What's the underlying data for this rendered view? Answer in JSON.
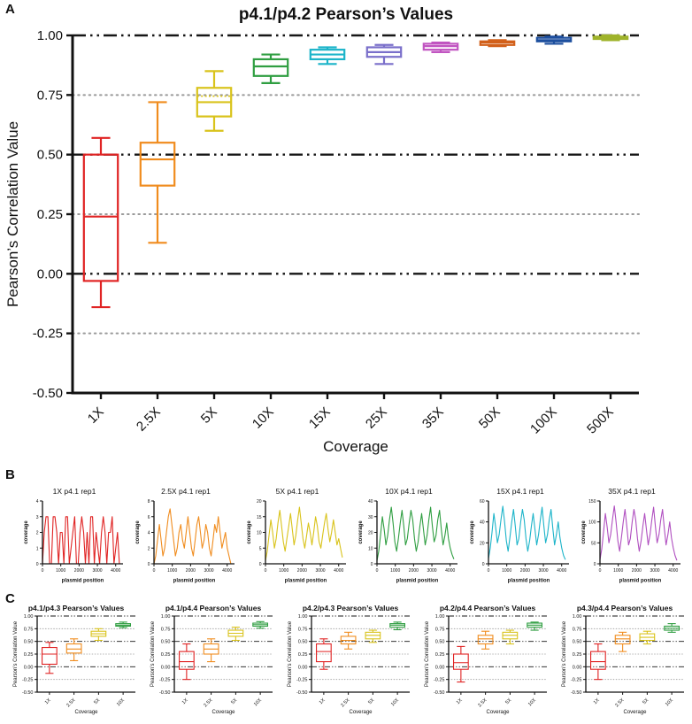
{
  "panels": {
    "a": {
      "label": "A"
    },
    "b": {
      "label": "B"
    },
    "c": {
      "label": "C"
    }
  },
  "chart_data": [
    {
      "type": "box",
      "style": "large",
      "title": "p4.1/p4.2 Pearson’s Values",
      "xlabel": "Coverage",
      "ylabel": "Pearson’s Correlation Value",
      "ylim": [
        -0.5,
        1.0
      ],
      "yticks": [
        -0.5,
        -0.25,
        0,
        0.25,
        0.5,
        0.75,
        1
      ],
      "ref_dashdot": [
        0,
        0.5,
        1
      ],
      "ref_dotted": [
        -0.25,
        0.25,
        0.75
      ],
      "categories": [
        "1X",
        "2.5X",
        "5X",
        "10X",
        "15X",
        "25X",
        "35X",
        "50X",
        "100X",
        "500X"
      ],
      "boxes": [
        {
          "color": "#e02323",
          "min": -0.14,
          "q1": -0.03,
          "med": 0.24,
          "q3": 0.5,
          "max": 0.57
        },
        {
          "color": "#f08c1e",
          "min": 0.13,
          "q1": 0.37,
          "med": 0.48,
          "q3": 0.55,
          "max": 0.72
        },
        {
          "color": "#d9c31b",
          "min": 0.6,
          "q1": 0.66,
          "med": 0.72,
          "mean": 0.745,
          "q3": 0.78,
          "max": 0.85
        },
        {
          "color": "#2f9e41",
          "min": 0.8,
          "q1": 0.83,
          "med": 0.87,
          "q3": 0.9,
          "max": 0.92
        },
        {
          "color": "#1cb4c9",
          "min": 0.88,
          "q1": 0.9,
          "med": 0.92,
          "q3": 0.94,
          "max": 0.95
        },
        {
          "color": "#7a6fca",
          "min": 0.88,
          "q1": 0.91,
          "med": 0.93,
          "q3": 0.95,
          "max": 0.96
        },
        {
          "color": "#c155c1",
          "min": 0.93,
          "q1": 0.94,
          "med": 0.955,
          "q3": 0.965,
          "max": 0.97
        },
        {
          "color": "#d2601a",
          "min": 0.955,
          "q1": 0.96,
          "med": 0.97,
          "q3": 0.975,
          "max": 0.98
        },
        {
          "color": "#1d4f9e",
          "min": 0.965,
          "q1": 0.975,
          "med": 0.98,
          "q3": 0.99,
          "max": 0.995
        },
        {
          "color": "#9fb32b",
          "min": 0.98,
          "q1": 0.985,
          "med": 0.99,
          "q3": 0.995,
          "max": 1.0
        }
      ]
    },
    {
      "type": "line",
      "title": "1X p4.1 rep1",
      "color": "#e02323",
      "xlabel": "plasmid position",
      "ylabel": "coverage",
      "xlim": [
        0,
        4400
      ],
      "xticks": [
        0,
        1000,
        2000,
        3000,
        4000
      ],
      "ylim": [
        0,
        4
      ],
      "yticks": [
        0,
        1,
        2,
        3,
        4
      ],
      "values": [
        0,
        2,
        3,
        3,
        0,
        0,
        3,
        3,
        2,
        0,
        2,
        2,
        0,
        3,
        3,
        0,
        1,
        2,
        3,
        0,
        0,
        2,
        3,
        2,
        0,
        2,
        0,
        3,
        3,
        0,
        2,
        1,
        0,
        2,
        3,
        2,
        0,
        2,
        2,
        3,
        0,
        1,
        2,
        0
      ]
    },
    {
      "type": "line",
      "title": "2.5X p4.1 rep1",
      "color": "#f08c1e",
      "xlabel": "plasmid position",
      "ylabel": "coverage",
      "xlim": [
        0,
        4400
      ],
      "xticks": [
        0,
        1000,
        2000,
        3000,
        4000
      ],
      "ylim": [
        0,
        8
      ],
      "yticks": [
        0,
        2,
        4,
        6,
        8
      ],
      "values": [
        0,
        1,
        3,
        5,
        3,
        1,
        2,
        4,
        6,
        7,
        5,
        3,
        1,
        2,
        4,
        5,
        3,
        2,
        4,
        6,
        4,
        2,
        1,
        3,
        5,
        6,
        4,
        2,
        3,
        5,
        4,
        2,
        1,
        3,
        5,
        4,
        6,
        4,
        2,
        3,
        4,
        2,
        1,
        0
      ]
    },
    {
      "type": "line",
      "title": "5X p4.1 rep1",
      "color": "#d9c31b",
      "xlabel": "plasmid position",
      "ylabel": "coverage",
      "xlim": [
        0,
        4400
      ],
      "xticks": [
        0,
        1000,
        2000,
        3000,
        4000
      ],
      "ylim": [
        0,
        20
      ],
      "yticks": [
        0,
        5,
        10,
        15,
        20
      ],
      "values": [
        1,
        4,
        9,
        14,
        10,
        5,
        8,
        13,
        17,
        12,
        7,
        4,
        8,
        12,
        16,
        11,
        6,
        9,
        14,
        18,
        13,
        8,
        5,
        9,
        13,
        10,
        6,
        10,
        15,
        12,
        7,
        5,
        9,
        13,
        16,
        11,
        7,
        10,
        14,
        10,
        6,
        8,
        5,
        2
      ]
    },
    {
      "type": "line",
      "title": "10X p4.1 rep1",
      "color": "#2f9e41",
      "xlabel": "plasmid position",
      "ylabel": "coverage",
      "xlim": [
        0,
        4400
      ],
      "xticks": [
        0,
        1000,
        2000,
        3000,
        4000
      ],
      "ylim": [
        0,
        40
      ],
      "yticks": [
        0,
        10,
        20,
        30,
        40
      ],
      "values": [
        2,
        8,
        18,
        30,
        22,
        12,
        18,
        28,
        36,
        26,
        14,
        8,
        16,
        26,
        34,
        24,
        12,
        16,
        26,
        34,
        28,
        16,
        8,
        14,
        24,
        32,
        22,
        12,
        18,
        28,
        36,
        24,
        14,
        18,
        28,
        34,
        22,
        12,
        18,
        26,
        16,
        10,
        6,
        3
      ]
    },
    {
      "type": "line",
      "title": "15X p4.1 rep1",
      "color": "#1cb4c9",
      "xlabel": "plasmid position",
      "ylabel": "coverage",
      "xlim": [
        0,
        4400
      ],
      "xticks": [
        0,
        1000,
        2000,
        3000,
        4000
      ],
      "ylim": [
        0,
        60
      ],
      "yticks": [
        0,
        20,
        40,
        60
      ],
      "values": [
        5,
        15,
        30,
        48,
        35,
        20,
        28,
        42,
        55,
        40,
        22,
        12,
        25,
        40,
        52,
        36,
        18,
        24,
        40,
        52,
        42,
        24,
        12,
        22,
        36,
        48,
        33,
        18,
        28,
        42,
        54,
        36,
        20,
        28,
        42,
        52,
        34,
        18,
        28,
        40,
        25,
        15,
        8,
        4
      ]
    },
    {
      "type": "line",
      "title": "35X p4.1 rep1",
      "color": "#b04fc0",
      "xlabel": "plasmid position",
      "ylabel": "coverage",
      "xlim": [
        0,
        4400
      ],
      "xticks": [
        0,
        1000,
        2000,
        3000,
        4000
      ],
      "ylim": [
        0,
        150
      ],
      "yticks": [
        0,
        50,
        100,
        150
      ],
      "values": [
        10,
        35,
        75,
        120,
        88,
        50,
        70,
        105,
        138,
        100,
        55,
        30,
        62,
        100,
        130,
        90,
        45,
        60,
        100,
        130,
        105,
        60,
        30,
        55,
        90,
        120,
        82,
        45,
        70,
        105,
        135,
        90,
        50,
        70,
        105,
        130,
        85,
        45,
        70,
        100,
        62,
        38,
        20,
        8
      ]
    },
    {
      "type": "box",
      "style": "small",
      "title": "p4.1/p4.3 Pearson’s Values",
      "xlabel": "Coverage",
      "ylabel": "Pearson’s Correlation Value",
      "ylim": [
        -0.5,
        1.0
      ],
      "yticks": [
        -0.5,
        -0.25,
        0,
        0.25,
        0.5,
        0.75,
        1
      ],
      "ref_dashdot": [
        0,
        0.5,
        1
      ],
      "ref_dotted": [
        -0.25,
        0.25,
        0.75
      ],
      "categories": [
        "1X",
        "2.5X",
        "5X",
        "10X"
      ],
      "boxes": [
        {
          "color": "#e02323",
          "min": -0.13,
          "q1": 0.05,
          "med": 0.25,
          "q3": 0.38,
          "max": 0.48
        },
        {
          "color": "#f08c1e",
          "min": 0.12,
          "q1": 0.27,
          "med": 0.35,
          "q3": 0.45,
          "max": 0.55
        },
        {
          "color": "#d9c31b",
          "min": 0.52,
          "q1": 0.6,
          "med": 0.65,
          "q3": 0.7,
          "max": 0.75
        },
        {
          "color": "#2f9e41",
          "min": 0.77,
          "q1": 0.8,
          "med": 0.82,
          "q3": 0.85,
          "max": 0.88
        }
      ]
    },
    {
      "type": "box",
      "style": "small",
      "title": "p4.1/p4.4 Pearson’s Values",
      "xlabel": "Coverage",
      "ylabel": "Pearson’s Correlation Value",
      "ylim": [
        -0.5,
        1.0
      ],
      "yticks": [
        -0.5,
        -0.25,
        0,
        0.25,
        0.5,
        0.75,
        1
      ],
      "ref_dashdot": [
        0,
        0.5,
        1
      ],
      "ref_dotted": [
        -0.25,
        0.25,
        0.75
      ],
      "categories": [
        "1X",
        "2.5X",
        "5X",
        "10X"
      ],
      "boxes": [
        {
          "color": "#e02323",
          "min": -0.25,
          "q1": -0.05,
          "med": 0.1,
          "q3": 0.3,
          "max": 0.45
        },
        {
          "color": "#f08c1e",
          "min": 0.1,
          "q1": 0.25,
          "med": 0.35,
          "q3": 0.45,
          "max": 0.55
        },
        {
          "color": "#d9c31b",
          "min": 0.52,
          "q1": 0.6,
          "med": 0.66,
          "q3": 0.72,
          "max": 0.78
        },
        {
          "color": "#2f9e41",
          "min": 0.76,
          "q1": 0.8,
          "med": 0.83,
          "q3": 0.86,
          "max": 0.89
        }
      ]
    },
    {
      "type": "box",
      "style": "small",
      "title": "p4.2/p4.3 Pearson’s Values",
      "xlabel": "Coverage",
      "ylabel": "Pearson’s Correlation Value",
      "ylim": [
        -0.5,
        1.0
      ],
      "yticks": [
        -0.5,
        -0.25,
        0,
        0.25,
        0.5,
        0.75,
        1
      ],
      "ref_dashdot": [
        0,
        0.5,
        1
      ],
      "ref_dotted": [
        -0.25,
        0.25,
        0.75
      ],
      "categories": [
        "1X",
        "2.5X",
        "5X",
        "10X"
      ],
      "boxes": [
        {
          "color": "#e02323",
          "min": -0.05,
          "q1": 0.1,
          "med": 0.3,
          "q3": 0.45,
          "max": 0.55
        },
        {
          "color": "#f08c1e",
          "min": 0.35,
          "q1": 0.45,
          "med": 0.52,
          "q3": 0.6,
          "max": 0.68
        },
        {
          "color": "#d9c31b",
          "min": 0.48,
          "q1": 0.55,
          "med": 0.62,
          "q3": 0.68,
          "max": 0.72
        },
        {
          "color": "#2f9e41",
          "min": 0.73,
          "q1": 0.78,
          "med": 0.82,
          "q3": 0.85,
          "max": 0.88
        }
      ]
    },
    {
      "type": "box",
      "style": "small",
      "title": "p4.2/p4.4 Pearson’s Values",
      "xlabel": "Coverage",
      "ylabel": "Pearson’s Correlation Value",
      "ylim": [
        -0.5,
        1.0
      ],
      "yticks": [
        -0.5,
        -0.25,
        0,
        0.25,
        0.5,
        0.75,
        1
      ],
      "ref_dashdot": [
        0,
        0.5,
        1
      ],
      "ref_dotted": [
        -0.25,
        0.25,
        0.75
      ],
      "categories": [
        "1X",
        "2.5X",
        "5X",
        "10X"
      ],
      "boxes": [
        {
          "color": "#e02323",
          "min": -0.3,
          "q1": -0.05,
          "med": 0.08,
          "q3": 0.25,
          "max": 0.4
        },
        {
          "color": "#f08c1e",
          "min": 0.35,
          "q1": 0.45,
          "med": 0.55,
          "q3": 0.62,
          "max": 0.7
        },
        {
          "color": "#d9c31b",
          "min": 0.45,
          "q1": 0.55,
          "med": 0.62,
          "q3": 0.68,
          "max": 0.72
        },
        {
          "color": "#2f9e41",
          "min": 0.72,
          "q1": 0.78,
          "med": 0.82,
          "q3": 0.86,
          "max": 0.88
        }
      ]
    },
    {
      "type": "box",
      "style": "small",
      "title": "p4.3/p4.4 Pearson’s Values",
      "xlabel": "Coverage",
      "ylabel": "Pearson’s Correlation Value",
      "ylim": [
        -0.5,
        1.0
      ],
      "yticks": [
        -0.5,
        -0.25,
        0,
        0.25,
        0.5,
        0.75,
        1
      ],
      "ref_dashdot": [
        0,
        0.5,
        1
      ],
      "ref_dotted": [
        -0.25,
        0.25,
        0.75
      ],
      "categories": [
        "1X",
        "2.5X",
        "5X",
        "10X"
      ],
      "boxes": [
        {
          "color": "#e02323",
          "min": -0.25,
          "q1": -0.05,
          "med": 0.1,
          "q3": 0.3,
          "max": 0.45
        },
        {
          "color": "#f08c1e",
          "min": 0.3,
          "q1": 0.45,
          "med": 0.55,
          "q3": 0.62,
          "max": 0.68
        },
        {
          "color": "#d9c31b",
          "min": 0.45,
          "q1": 0.52,
          "med": 0.58,
          "q3": 0.65,
          "max": 0.7
        },
        {
          "color": "#2f9e41",
          "min": 0.68,
          "q1": 0.72,
          "med": 0.76,
          "q3": 0.8,
          "max": 0.85
        }
      ]
    }
  ]
}
